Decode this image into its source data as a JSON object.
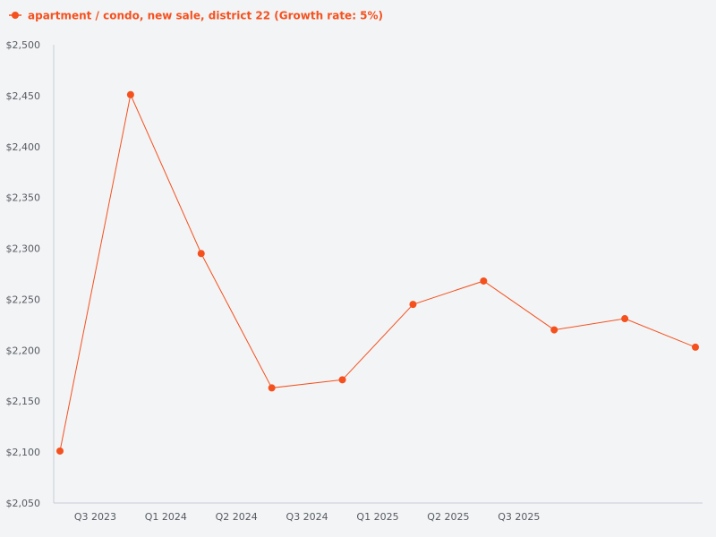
{
  "chart_data": {
    "type": "line",
    "legend": {
      "label": "apartment / condo, new sale, district 22 (Growth rate: 5%)",
      "placement": "top-left"
    },
    "colors": {
      "series": "#f4511e",
      "background": "#f3f4f6",
      "axis": "#c7cbd6",
      "tick_text": "#555a60"
    },
    "grid": false,
    "ylim": [
      2050,
      2500
    ],
    "y_ticks": [
      2050,
      2100,
      2150,
      2200,
      2250,
      2300,
      2350,
      2400,
      2450,
      2500
    ],
    "y_tick_labels": [
      "$2,050",
      "$2,100",
      "$2,150",
      "$2,200",
      "$2,250",
      "$2,300",
      "$2,350",
      "$2,400",
      "$2,450",
      "$2,500"
    ],
    "x_tick_labels": [
      "Q3 2023",
      "Q1 2024",
      "Q2 2024",
      "Q3 2024",
      "Q1 2025",
      "Q2 2025",
      "Q3 2025"
    ],
    "x_tick_index": [
      0.5,
      1.5,
      2.5,
      3.5,
      4.5,
      5.5,
      6.5
    ],
    "series": [
      {
        "name": "apartment / condo, new sale, district 22 (Growth rate: 5%)",
        "values": [
          2101,
          2451,
          2295,
          2163,
          2171,
          2245,
          2268,
          2220,
          2231,
          2203
        ]
      }
    ]
  }
}
